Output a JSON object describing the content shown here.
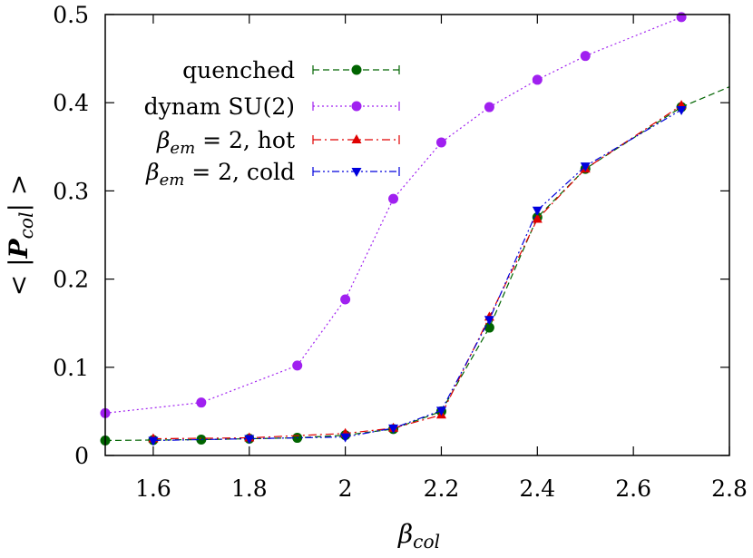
{
  "chart_data": {
    "type": "line",
    "xlabel": "β_col",
    "ylabel": "< |P_col| >",
    "xlim": [
      1.5,
      2.8
    ],
    "ylim": [
      0,
      0.5
    ],
    "x_ticks": [
      "1.6",
      "1.8",
      "2",
      "2.2",
      "2.4",
      "2.6",
      "2.8"
    ],
    "y_ticks": [
      "0",
      "0.1",
      "0.2",
      "0.3",
      "0.4",
      "0.5"
    ],
    "grid": false,
    "legend_position": "top-left",
    "series": [
      {
        "name": "quenched",
        "color": "#006400",
        "marker": "circle",
        "line": "dashed",
        "x": [
          1.5,
          1.7,
          1.9,
          2.0,
          2.1,
          2.2,
          2.3,
          2.4,
          2.5,
          2.7,
          2.8
        ],
        "y": [
          0.017,
          0.018,
          0.02,
          0.023,
          0.03,
          0.05,
          0.145,
          0.27,
          0.325,
          0.395,
          0.418
        ],
        "markers_x": [
          1.5,
          1.6,
          1.7,
          1.8,
          1.9,
          2.0,
          2.1,
          2.2,
          2.3,
          2.4,
          2.5,
          2.7
        ]
      },
      {
        "name": "dynam SU(2)",
        "color": "#a020f0",
        "marker": "circle",
        "line": "dotted",
        "x": [
          1.5,
          1.7,
          1.9,
          2.0,
          2.1,
          2.2,
          2.3,
          2.4,
          2.5,
          2.7
        ],
        "y": [
          0.048,
          0.06,
          0.102,
          0.177,
          0.291,
          0.355,
          0.395,
          0.426,
          0.453,
          0.497
        ]
      },
      {
        "name": "β_em = 2, hot",
        "color": "#e00000",
        "marker": "triangle-up",
        "line": "dash-dot",
        "x": [
          1.6,
          1.8,
          2.0,
          2.1,
          2.2,
          2.3,
          2.4,
          2.5,
          2.7
        ],
        "y": [
          0.019,
          0.02,
          0.025,
          0.031,
          0.046,
          0.157,
          0.268,
          0.325,
          0.397
        ]
      },
      {
        "name": "β_em = 2, cold",
        "color": "#0000dd",
        "marker": "triangle-down",
        "line": "dash-dot-dot",
        "x": [
          1.6,
          1.8,
          2.0,
          2.1,
          2.2,
          2.3,
          2.4,
          2.5,
          2.7
        ],
        "y": [
          0.017,
          0.019,
          0.021,
          0.031,
          0.051,
          0.154,
          0.278,
          0.328,
          0.392
        ]
      }
    ]
  }
}
